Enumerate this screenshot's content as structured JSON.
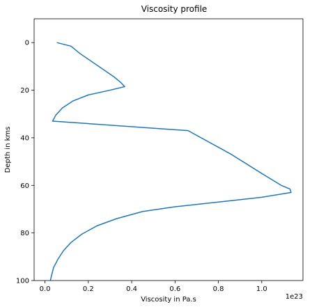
{
  "chart_data": {
    "type": "line",
    "title": "Viscosity profile",
    "xlabel": "Viscosity in Pa.s",
    "ylabel": "Depth in kms",
    "x_offset_text": "1e23",
    "x_scale": 1e+23,
    "xlim": [
      -0.05,
      1.19
    ],
    "ylim": [
      100,
      -10
    ],
    "x_ticks": [
      0.0,
      0.2,
      0.4,
      0.6,
      0.8,
      1.0
    ],
    "x_tick_labels": [
      "0.0",
      "0.2",
      "0.4",
      "0.6",
      "0.8",
      "1.0"
    ],
    "y_ticks": [
      0,
      20,
      40,
      60,
      80,
      100
    ],
    "y_tick_labels": [
      "0",
      "20",
      "40",
      "60",
      "80",
      "100"
    ],
    "grid": false,
    "series": [
      {
        "color": "#1f77b4",
        "x": [
          0.055,
          0.12,
          0.16,
          0.24,
          0.32,
          0.35,
          0.368,
          0.3,
          0.2,
          0.13,
          0.08,
          0.05,
          0.035,
          0.66,
          0.86,
          1.0,
          1.09,
          1.13,
          1.135,
          1.0,
          0.8,
          0.6,
          0.45,
          0.33,
          0.24,
          0.17,
          0.12,
          0.085,
          0.06,
          0.04,
          0.03,
          0.025
        ],
        "y": [
          0,
          1.5,
          4.5,
          9.5,
          14.5,
          16.8,
          18.5,
          20,
          22,
          24.5,
          27.5,
          30.5,
          33,
          37,
          47,
          55,
          60,
          61.5,
          63,
          65,
          67,
          69,
          71,
          74,
          77,
          80.5,
          84,
          87.5,
          91,
          94.5,
          98,
          100
        ]
      }
    ]
  }
}
